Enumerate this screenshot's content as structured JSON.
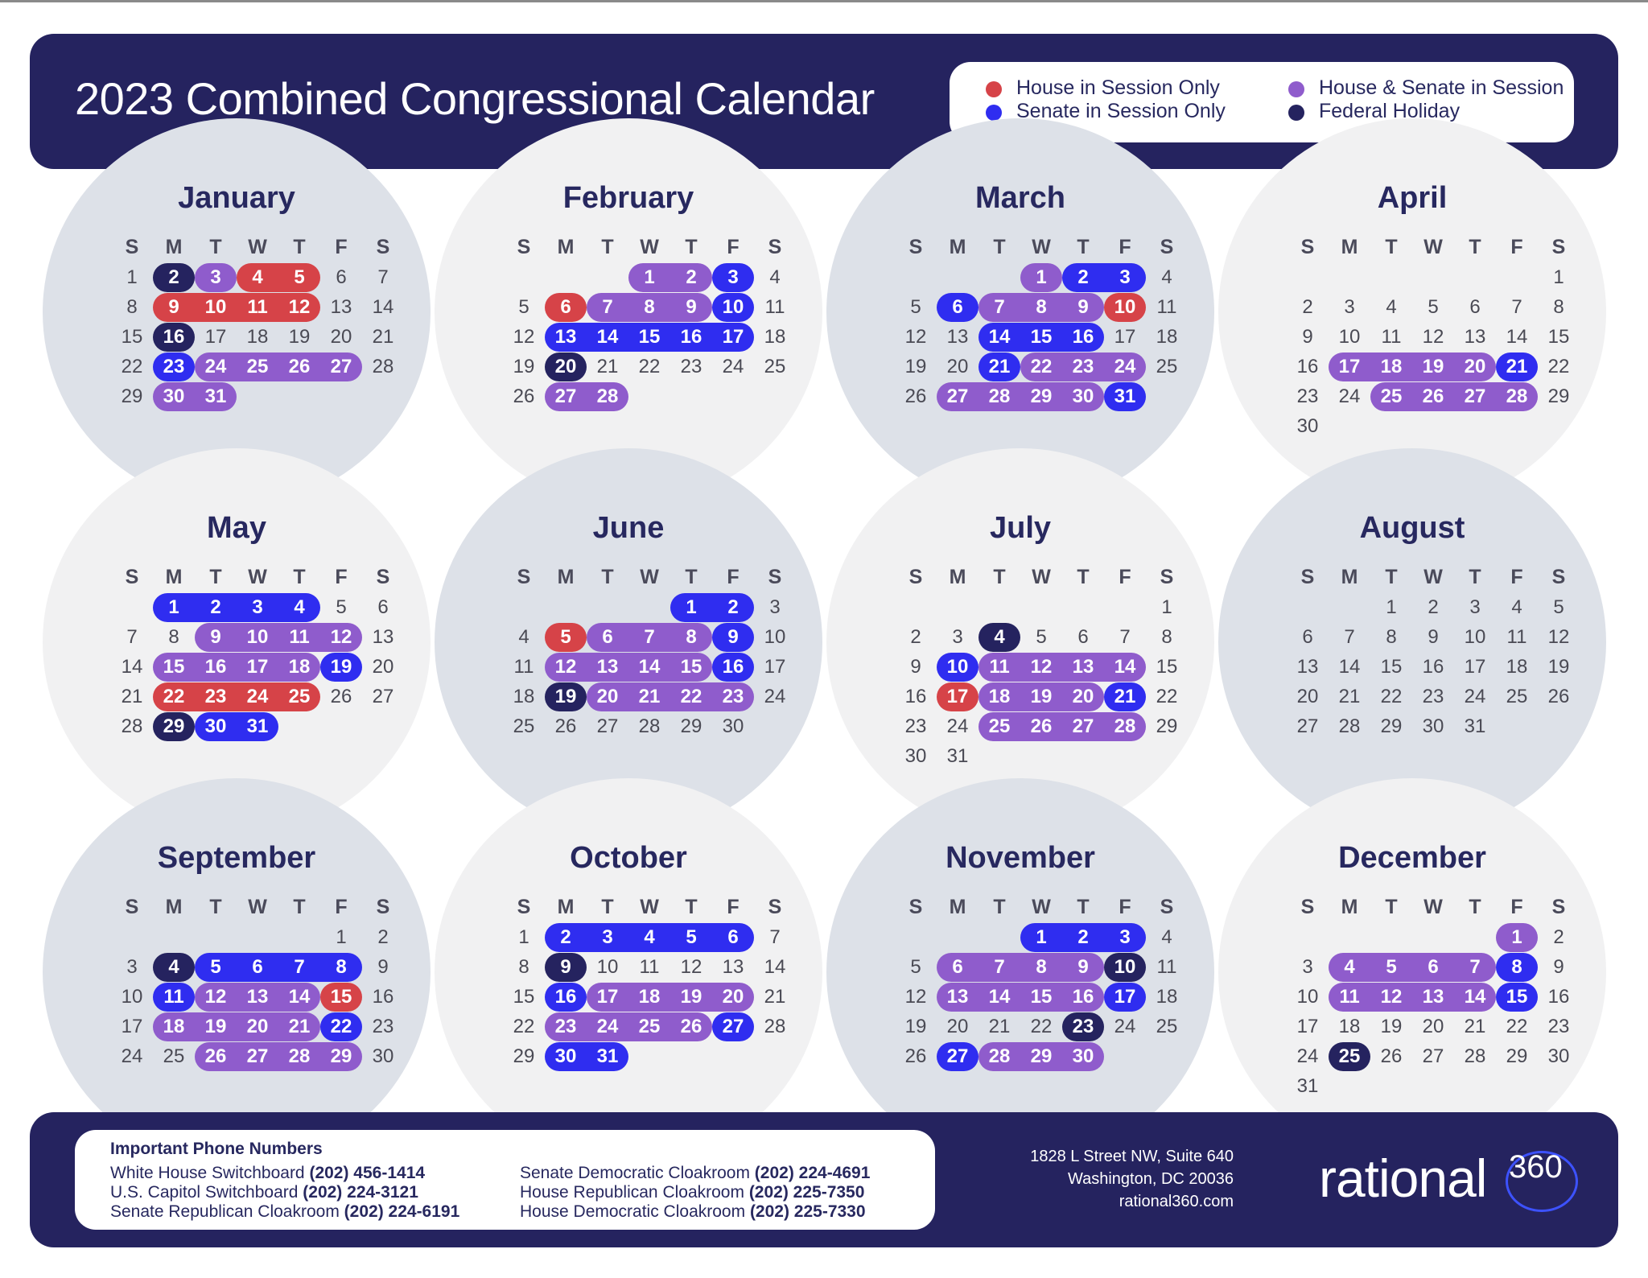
{
  "header": {
    "title": "2023 Combined Congressional Calendar"
  },
  "legend": [
    {
      "key": "H",
      "label": "House in Session Only",
      "color": "#d64348"
    },
    {
      "key": "B",
      "label": "House & Senate in Session",
      "color": "#8f5ccc"
    },
    {
      "key": "S",
      "label": "Senate in Session Only",
      "color": "#2f2df0"
    },
    {
      "key": "X",
      "label": "Federal Holiday",
      "color": "#25235f"
    }
  ],
  "colors": {
    "H": "#d64348",
    "B": "#8f5ccc",
    "S": "#2f2df0",
    "X": "#25235f"
  },
  "weekday_labels": [
    "S",
    "M",
    "T",
    "W",
    "T",
    "F",
    "S"
  ],
  "months": [
    {
      "name": "January",
      "start": 0,
      "days": 31,
      "marks": {
        "2": "X",
        "3": "B",
        "4": "H",
        "5": "H",
        "9": "H",
        "10": "H",
        "11": "H",
        "12": "H",
        "16": "X",
        "23": "S",
        "24": "B",
        "25": "B",
        "26": "B",
        "27": "B",
        "30": "B",
        "31": "B"
      }
    },
    {
      "name": "February",
      "start": 3,
      "days": 28,
      "marks": {
        "1": "B",
        "2": "B",
        "3": "S",
        "6": "H",
        "7": "B",
        "8": "B",
        "9": "B",
        "10": "S",
        "13": "S",
        "14": "S",
        "15": "S",
        "16": "S",
        "17": "S",
        "20": "X",
        "27": "B",
        "28": "B"
      }
    },
    {
      "name": "March",
      "start": 3,
      "days": 31,
      "marks": {
        "1": "B",
        "2": "S",
        "3": "S",
        "6": "S",
        "7": "B",
        "8": "B",
        "9": "B",
        "10": "H",
        "14": "S",
        "15": "S",
        "16": "S",
        "21": "S",
        "22": "B",
        "23": "B",
        "24": "B",
        "27": "B",
        "28": "B",
        "29": "B",
        "30": "B",
        "31": "S"
      }
    },
    {
      "name": "April",
      "start": 6,
      "days": 30,
      "marks": {
        "17": "B",
        "18": "B",
        "19": "B",
        "20": "B",
        "21": "S",
        "25": "B",
        "26": "B",
        "27": "B",
        "28": "B"
      }
    },
    {
      "name": "May",
      "start": 1,
      "days": 31,
      "marks": {
        "1": "S",
        "2": "S",
        "3": "S",
        "4": "S",
        "9": "B",
        "10": "B",
        "11": "B",
        "12": "B",
        "15": "B",
        "16": "B",
        "17": "B",
        "18": "B",
        "19": "S",
        "22": "H",
        "23": "H",
        "24": "H",
        "25": "H",
        "29": "X",
        "30": "S",
        "31": "S"
      }
    },
    {
      "name": "June",
      "start": 4,
      "days": 30,
      "marks": {
        "1": "S",
        "2": "S",
        "5": "H",
        "6": "B",
        "7": "B",
        "8": "B",
        "9": "S",
        "12": "B",
        "13": "B",
        "14": "B",
        "15": "B",
        "16": "S",
        "19": "X",
        "20": "B",
        "21": "B",
        "22": "B",
        "23": "B"
      }
    },
    {
      "name": "July",
      "start": 6,
      "days": 31,
      "marks": {
        "4": "X",
        "10": "S",
        "11": "B",
        "12": "B",
        "13": "B",
        "14": "B",
        "17": "H",
        "18": "B",
        "19": "B",
        "20": "B",
        "21": "S",
        "25": "B",
        "26": "B",
        "27": "B",
        "28": "B"
      }
    },
    {
      "name": "August",
      "start": 2,
      "days": 31,
      "marks": {}
    },
    {
      "name": "September",
      "start": 5,
      "days": 30,
      "marks": {
        "4": "X",
        "5": "S",
        "6": "S",
        "7": "S",
        "8": "S",
        "11": "S",
        "12": "B",
        "13": "B",
        "14": "B",
        "15": "H",
        "18": "B",
        "19": "B",
        "20": "B",
        "21": "B",
        "22": "S",
        "26": "B",
        "27": "B",
        "28": "B",
        "29": "B"
      }
    },
    {
      "name": "October",
      "start": 0,
      "days": 31,
      "marks": {
        "2": "S",
        "3": "S",
        "4": "S",
        "5": "S",
        "6": "S",
        "9": "X",
        "16": "S",
        "17": "B",
        "18": "B",
        "19": "B",
        "20": "B",
        "23": "B",
        "24": "B",
        "25": "B",
        "26": "B",
        "27": "S",
        "30": "S",
        "31": "S"
      }
    },
    {
      "name": "November",
      "start": 3,
      "days": 30,
      "marks": {
        "1": "S",
        "2": "S",
        "3": "S",
        "6": "B",
        "7": "B",
        "8": "B",
        "9": "B",
        "10": "X",
        "13": "B",
        "14": "B",
        "15": "B",
        "16": "B",
        "17": "S",
        "23": "X",
        "27": "S",
        "28": "B",
        "29": "B",
        "30": "B"
      }
    },
    {
      "name": "December",
      "start": 5,
      "days": 31,
      "marks": {
        "1": "B",
        "4": "B",
        "5": "B",
        "6": "B",
        "7": "B",
        "8": "S",
        "11": "B",
        "12": "B",
        "13": "B",
        "14": "B",
        "15": "S",
        "25": "X"
      }
    }
  ],
  "footer": {
    "phones_title": "Important Phone Numbers",
    "phones": [
      {
        "label": "White House Switchboard ",
        "number": "(202) 456-1414"
      },
      {
        "label": "U.S. Capitol Switchboard ",
        "number": "(202) 224-3121"
      },
      {
        "label": "Senate Republican Cloakroom ",
        "number": "(202) 224-6191"
      },
      {
        "label": "Senate Democratic Cloakroom ",
        "number": "(202) 224-4691"
      },
      {
        "label": "House Republican Cloakroom ",
        "number": "(202) 225-7350"
      },
      {
        "label": "House Democratic Cloakroom ",
        "number": "(202) 225-7330"
      }
    ],
    "address_line1": "1828 L Street NW, Suite 640",
    "address_line2": "Washington, DC 20036",
    "website": "rational360.com",
    "logo_word": "rational",
    "logo_number": "360"
  }
}
